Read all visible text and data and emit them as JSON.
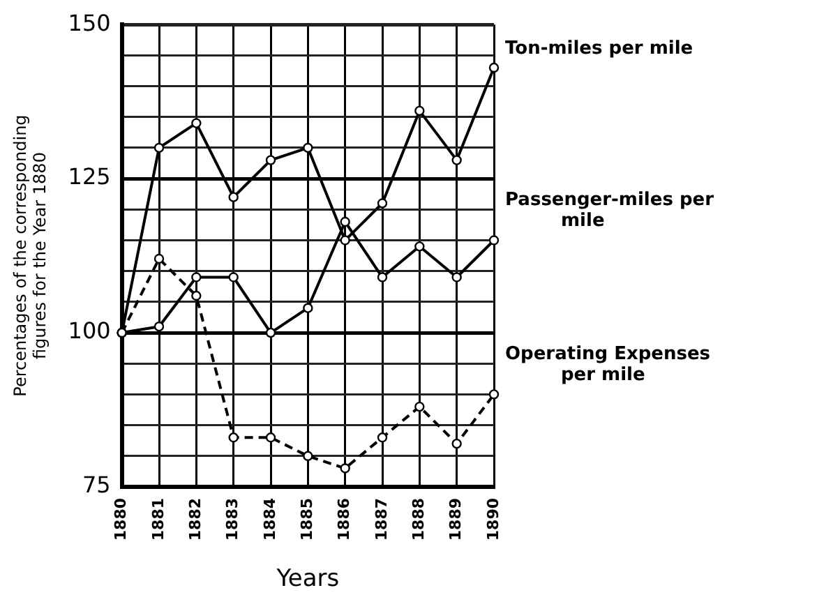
{
  "chart_data": {
    "type": "line",
    "xlabel": "Years",
    "ylabel": "Percentages of the corresponding figures for the Year 1880",
    "categories": [
      "1880",
      "1881",
      "1882",
      "1883",
      "1884",
      "1885",
      "1886",
      "1887",
      "1888",
      "1889",
      "1890"
    ],
    "series": [
      {
        "name": "Ton-miles per mile",
        "color": "#000000",
        "line_style": "solid",
        "values": [
          100,
          130,
          134,
          122,
          128,
          130,
          115,
          121,
          136,
          128,
          143
        ]
      },
      {
        "name": "Passenger-miles per mile",
        "color": "#000000",
        "line_style": "solid",
        "values": [
          100,
          101,
          109,
          109,
          100,
          104,
          118,
          109,
          114,
          109,
          115
        ]
      },
      {
        "name": "Operating Expenses per mile",
        "color": "#000000",
        "line_style": "dashed",
        "values": [
          100,
          112,
          106,
          83,
          83,
          80,
          78,
          83,
          88,
          82,
          90
        ]
      }
    ],
    "ylim": [
      75,
      150
    ],
    "yticks": [
      75,
      {
        "value": 80,
        "label": null
      },
      {
        "value": 85,
        "label": null
      },
      {
        "value": 90,
        "label": null
      },
      {
        "value": 95,
        "label": null
      },
      100,
      {
        "value": 105,
        "label": null
      },
      {
        "value": 110,
        "label": null
      },
      {
        "value": 115,
        "label": null
      },
      {
        "value": 120,
        "label": null
      },
      125,
      {
        "value": 130,
        "label": null
      },
      {
        "value": 135,
        "label": null
      },
      {
        "value": 140,
        "label": null
      },
      {
        "value": 145,
        "label": null
      },
      150
    ],
    "grid": true,
    "legend": false,
    "marker": "circle"
  }
}
